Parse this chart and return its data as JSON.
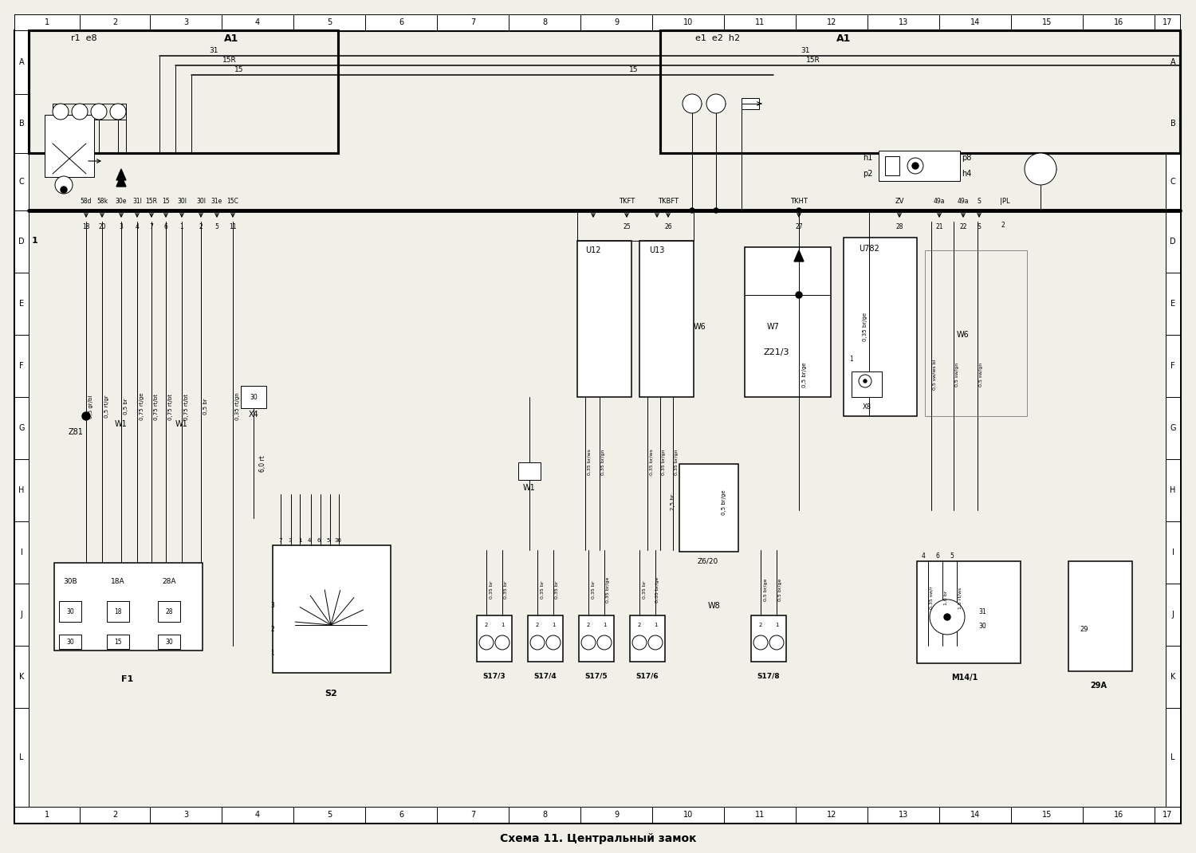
{
  "title": "Схема 11. Центральный замок",
  "bg_color": "#f0efe8",
  "border_color": "#000000",
  "col_nums": [
    "1",
    "2",
    "3",
    "4",
    "5",
    "6",
    "7",
    "8",
    "9",
    "10",
    "11",
    "12",
    "13",
    "14",
    "15",
    "16",
    "17"
  ],
  "row_labels": [
    "A",
    "B",
    "C",
    "D",
    "E",
    "F",
    "G",
    "H",
    "I",
    "J",
    "K",
    "L"
  ]
}
